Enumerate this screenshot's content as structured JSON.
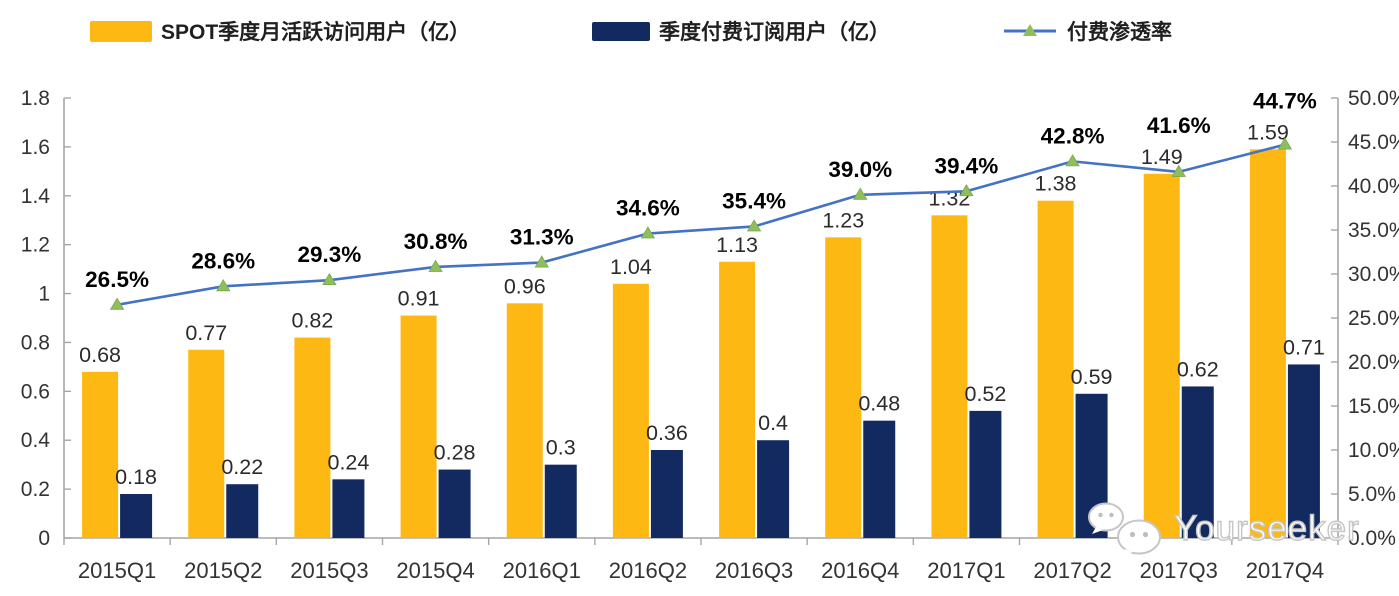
{
  "watermark": {
    "text": "Yourseeker",
    "icon": "wechat-logo"
  },
  "chart_data": {
    "type": "bar",
    "title": "",
    "categories": [
      "2015Q1",
      "2015Q2",
      "2015Q3",
      "2015Q4",
      "2016Q1",
      "2016Q2",
      "2016Q3",
      "2016Q4",
      "2017Q1",
      "2017Q2",
      "2017Q3",
      "2017Q4"
    ],
    "series": [
      {
        "name": "SPOT季度月活跃访问用户（亿）",
        "type": "bar",
        "axis": "left",
        "color": "#FDB813",
        "values": [
          0.68,
          0.77,
          0.82,
          0.91,
          0.96,
          1.04,
          1.13,
          1.23,
          1.32,
          1.38,
          1.49,
          1.59
        ],
        "labels": [
          "0.68",
          "0.77",
          "0.82",
          "0.91",
          "0.96",
          "1.04",
          "1.13",
          "1.23",
          "1.32",
          "1.38",
          "1.49",
          "1.59"
        ]
      },
      {
        "name": "季度付费订阅用户（亿）",
        "type": "bar",
        "axis": "left",
        "color": "#122A60",
        "values": [
          0.18,
          0.22,
          0.24,
          0.28,
          0.3,
          0.36,
          0.4,
          0.48,
          0.52,
          0.59,
          0.62,
          0.71
        ],
        "labels": [
          "0.18",
          "0.22",
          "0.24",
          "0.28",
          "0.3",
          "0.36",
          "0.4",
          "0.48",
          "0.52",
          "0.59",
          "0.62",
          "0.71"
        ]
      },
      {
        "name": "付费渗透率",
        "type": "line",
        "axis": "right",
        "color": "#4472C4",
        "marker": "triangle",
        "marker_color": "#8FBE5B",
        "values": [
          26.5,
          28.6,
          29.3,
          30.8,
          31.3,
          34.6,
          35.4,
          39.0,
          39.4,
          42.8,
          41.6,
          44.7
        ],
        "labels": [
          "26.5%",
          "28.6%",
          "29.3%",
          "30.8%",
          "31.3%",
          "34.6%",
          "35.4%",
          "39.0%",
          "39.4%",
          "42.8%",
          "41.6%",
          "44.7%"
        ]
      }
    ],
    "left_axis": {
      "min": 0,
      "max": 1.8,
      "step": 0.2,
      "ticks": [
        {
          "value": 0,
          "label": "0"
        },
        {
          "value": 0.2,
          "label": "0.2"
        },
        {
          "value": 0.4,
          "label": "0.4"
        },
        {
          "value": 0.6,
          "label": "0.6"
        },
        {
          "value": 0.8,
          "label": "0.8"
        },
        {
          "value": 1,
          "label": "1"
        },
        {
          "value": 1.2,
          "label": "1.2"
        },
        {
          "value": 1.4,
          "label": "1.4"
        },
        {
          "value": 1.6,
          "label": "1.6"
        },
        {
          "value": 1.8,
          "label": "1.8"
        }
      ]
    },
    "right_axis": {
      "min": 0,
      "max": 50,
      "step": 5,
      "ticks": [
        {
          "value": 0,
          "label": "0.0%"
        },
        {
          "value": 5,
          "label": "5.0%"
        },
        {
          "value": 10,
          "label": "10.0%"
        },
        {
          "value": 15,
          "label": "15.0%"
        },
        {
          "value": 20,
          "label": "20.0%"
        },
        {
          "value": 25,
          "label": "25.0%"
        },
        {
          "value": 30,
          "label": "30.0%"
        },
        {
          "value": 35,
          "label": "35.0%"
        },
        {
          "value": 40,
          "label": "40.0%"
        },
        {
          "value": 45,
          "label": "45.0%"
        },
        {
          "value": 50,
          "label": "50.0%"
        }
      ]
    },
    "grid": false,
    "legend_position": "top",
    "axis_color": "#a6a6a6",
    "label_color": "#2b2b2b",
    "percent_label_color": "#000000"
  }
}
